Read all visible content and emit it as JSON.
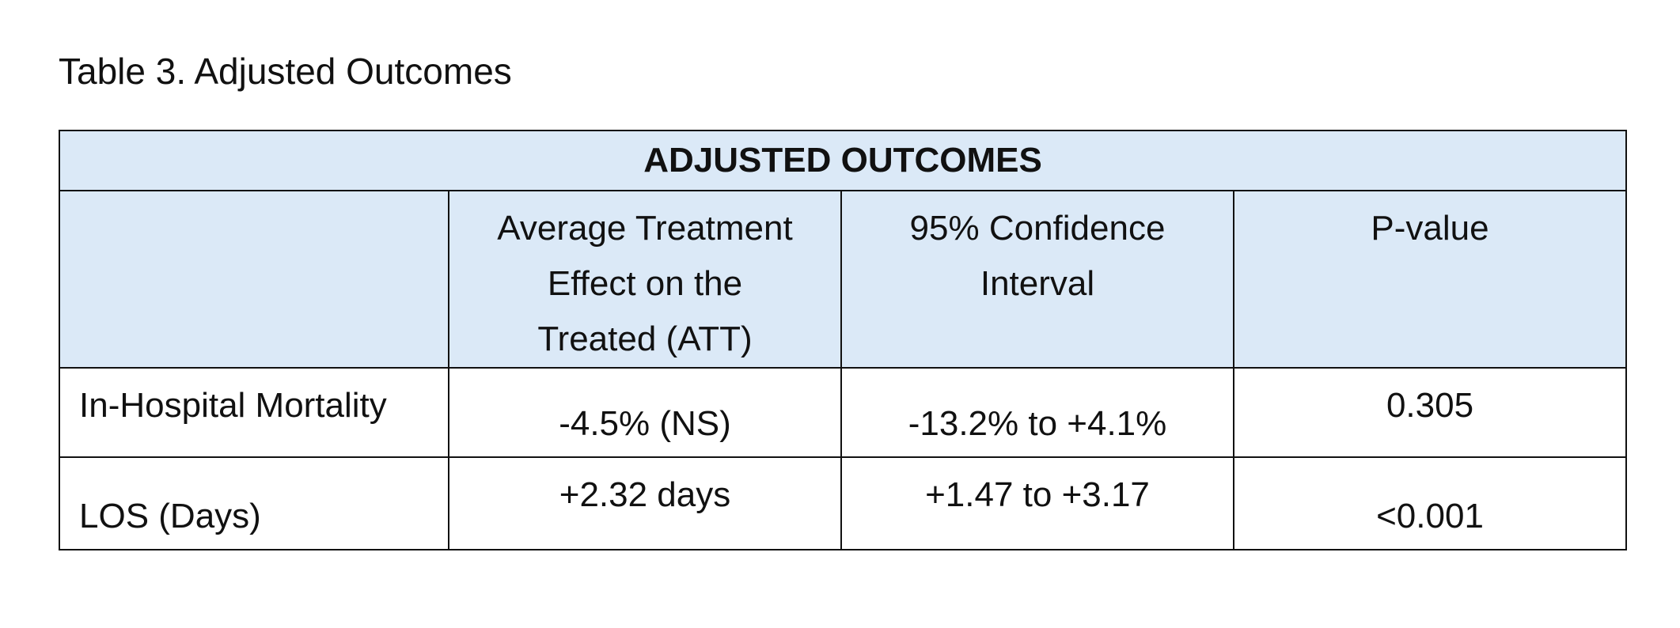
{
  "caption": "Table 3.  Adjusted Outcomes",
  "table": {
    "title": "ADJUSTED OUTCOMES",
    "headers": [
      "",
      "Average Treatment Effect on the Treated (ATT)",
      "95% Confidence Interval",
      "P-value"
    ],
    "rows": [
      {
        "label": "In-Hospital Mortality",
        "att": "-4.5% (NS)",
        "ci": "-13.2% to +4.1%",
        "p": "0.305"
      },
      {
        "label": "LOS (Days)",
        "att": "+2.32 days",
        "ci": "+1.47 to +3.17",
        "p": "<0.001"
      }
    ]
  }
}
